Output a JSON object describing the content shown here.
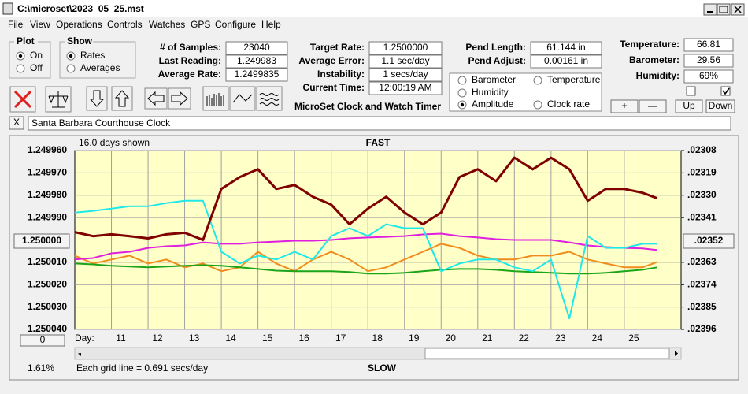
{
  "window": {
    "title": "C:\\microset\\2023_05_25.mst"
  },
  "menu": [
    "File",
    "View",
    "Operations",
    "Controls",
    "Watches",
    "GPS",
    "Configure",
    "Help"
  ],
  "plot": {
    "label": "Plot",
    "options": [
      "On",
      "Off"
    ],
    "selected": 0
  },
  "show": {
    "label": "Show",
    "options": [
      "Rates",
      "Averages"
    ],
    "selected": 0
  },
  "fields": [
    {
      "label": "# of Samples:",
      "value": "23040"
    },
    {
      "label": "Last Reading:",
      "value": "1.249983"
    },
    {
      "label": "Average Rate:",
      "value": "1.2499835"
    },
    {
      "label": "Target Rate:",
      "value": "1.2500000"
    },
    {
      "label": "Average Error:",
      "value": "1.1 sec/day"
    },
    {
      "label": "Instability:",
      "value": "1 secs/day"
    },
    {
      "label": "Current Time:",
      "value": "12:00:19 AM"
    },
    {
      "label": "Pend Length:",
      "value": "61.144 in"
    },
    {
      "label": "Pend Adjust:",
      "value": "0.00161 in"
    },
    {
      "label": "Temperature:",
      "value": "66.81"
    },
    {
      "label": "Barometer:",
      "value": "29.56"
    },
    {
      "label": "Humidity:",
      "value": "69%"
    }
  ],
  "app_name": "MicroSet Clock and Watch Timer",
  "buttons": [
    "+",
    "—",
    "Up",
    "Down"
  ],
  "close_button": "X",
  "watch_name": "Santa Barbara Courthouse Clock",
  "chart_data": {
    "type": "line",
    "top_label": "FAST",
    "bottom_label": "SLOW",
    "days_shown": "16.0 days shown",
    "grid_note": "Each grid line = 0.691 secs/day",
    "x_label": "Day:",
    "percent": "1.61%",
    "left_button": "1.250000",
    "right_button": ".02352",
    "bottom_button": "0",
    "selected_series": 3,
    "grid": true,
    "background": "#ffffc8",
    "x": [
      10,
      10.5,
      11,
      11.5,
      12,
      12.5,
      13,
      13.5,
      14,
      14.5,
      15,
      15.5,
      16,
      16.5,
      17,
      17.5,
      18,
      18.5,
      19,
      19.5,
      20,
      20.5,
      21,
      21.5,
      22,
      22.5,
      23,
      23.5,
      24,
      24.5,
      25,
      25.5,
      25.9
    ],
    "xlim": [
      10,
      26.55
    ],
    "xticks": [
      11,
      12,
      13,
      14,
      15,
      16,
      17,
      18,
      19,
      20,
      21,
      22,
      23,
      24,
      25
    ],
    "ylim": [
      1.25004,
      1.24996
    ],
    "yticks": [
      {
        "value": 1.24996,
        "label": "1.249960"
      },
      {
        "value": 1.24997,
        "label": "1.249970"
      },
      {
        "value": 1.24998,
        "label": "1.249980"
      },
      {
        "value": 1.24999,
        "label": "1.249990"
      },
      {
        "value": 1.25,
        "label": "1.250000"
      },
      {
        "value": 1.25001,
        "label": "1.250010"
      },
      {
        "value": 1.25002,
        "label": "1.250020"
      },
      {
        "value": 1.25003,
        "label": "1.250030"
      },
      {
        "value": 1.25004,
        "label": "1.250040"
      }
    ],
    "y2lim": [
      0.02396,
      0.02308
    ],
    "y2ticks": [
      {
        "value": 0.02308,
        "label": ".02308"
      },
      {
        "value": 0.02319,
        "label": ".02319"
      },
      {
        "value": 0.0233,
        "label": ".02330"
      },
      {
        "value": 0.02341,
        "label": ".02341"
      },
      {
        "value": 0.02352,
        "label": ".02352"
      },
      {
        "value": 0.02363,
        "label": ".02363"
      },
      {
        "value": 0.02374,
        "label": ".02374"
      },
      {
        "value": 0.02385,
        "label": ".02385"
      },
      {
        "value": 0.02396,
        "label": ".02396"
      }
    ],
    "series": [
      {
        "name": "Barometer",
        "color": "#f08c1e",
        "label_color": "#e07b00",
        "axis": "y2",
        "values": [
          0.023597,
          0.023636,
          0.023616,
          0.023597,
          0.023636,
          0.023616,
          0.023655,
          0.023636,
          0.023674,
          0.023655,
          0.023578,
          0.023636,
          0.023674,
          0.023616,
          0.023578,
          0.023616,
          0.023674,
          0.023655,
          0.023616,
          0.023578,
          0.023539,
          0.023559,
          0.023597,
          0.023616,
          0.023616,
          0.023597,
          0.023597,
          0.023578,
          0.023616,
          0.023636,
          0.023655,
          0.023655,
          0.023628
        ]
      },
      {
        "name": "Temperature",
        "color": "#1aa51a",
        "label_color": "#1aa51a",
        "axis": "y2",
        "values": [
          0.023636,
          0.02364,
          0.023647,
          0.023651,
          0.023655,
          0.023651,
          0.023647,
          0.023644,
          0.023647,
          0.023655,
          0.023663,
          0.023671,
          0.023674,
          0.023674,
          0.023674,
          0.023678,
          0.023686,
          0.023686,
          0.023682,
          0.023674,
          0.023667,
          0.023663,
          0.023663,
          0.023667,
          0.023674,
          0.023678,
          0.023682,
          0.023686,
          0.023686,
          0.023682,
          0.023674,
          0.023667,
          0.023655
        ]
      },
      {
        "name": "Humidity",
        "color": "#e01ee0",
        "label_color": "#d01ed0",
        "axis": "y2",
        "values": [
          0.023616,
          0.023609,
          0.023586,
          0.023578,
          0.023559,
          0.023551,
          0.023547,
          0.023532,
          0.023539,
          0.023539,
          0.023532,
          0.023528,
          0.023524,
          0.023524,
          0.02352,
          0.023512,
          0.023508,
          0.023505,
          0.023501,
          0.023493,
          0.023489,
          0.023501,
          0.023508,
          0.023516,
          0.02352,
          0.02352,
          0.02352,
          0.023532,
          0.023547,
          0.023555,
          0.023559,
          0.023562,
          0.02357
        ]
      },
      {
        "name": "Amplitude",
        "color": "#20e8e8",
        "label_color": "#1ec8e0",
        "axis": "y2",
        "values": [
          0.023385,
          0.023377,
          0.023366,
          0.023354,
          0.023354,
          0.023339,
          0.023327,
          0.023327,
          0.023578,
          0.023636,
          0.023597,
          0.023616,
          0.023578,
          0.023616,
          0.023501,
          0.023462,
          0.023501,
          0.023443,
          0.023462,
          0.023462,
          0.023674,
          0.023636,
          0.023616,
          0.023616,
          0.023655,
          0.023674,
          0.023616,
          0.023906,
          0.023501,
          0.023559,
          0.023559,
          0.023539,
          0.023539
        ]
      },
      {
        "name": "Clock rate",
        "color": "#800000",
        "label_color": "#a02020",
        "values": [
          1.2499965,
          1.2499983,
          1.2499975,
          1.2499983,
          1.2499993,
          1.2499975,
          1.2499968,
          1.25,
          1.2499772,
          1.2499719,
          1.2499684,
          1.2499772,
          1.2499754,
          1.2499807,
          1.2499842,
          1.249993,
          1.249986,
          1.2499807,
          1.2499877,
          1.249993,
          1.2499877,
          1.2499719,
          1.2499684,
          1.2499737,
          1.2499632,
          1.2499684,
          1.2499632,
          1.2499684,
          1.2499825,
          1.2499772,
          1.2499772,
          1.2499789,
          1.2499814
        ]
      }
    ]
  }
}
